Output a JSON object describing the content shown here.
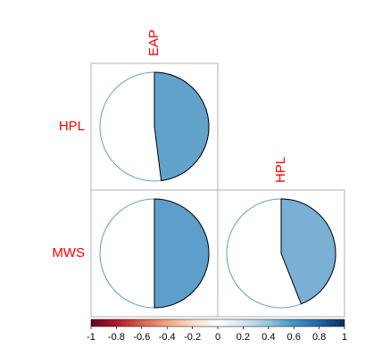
{
  "chart_data": {
    "type": "corrplot",
    "rows": [
      "HPL",
      "MWS"
    ],
    "columns": [
      "EAP",
      "HPL"
    ],
    "values": [
      [
        0.48,
        null
      ],
      [
        0.5,
        0.44
      ]
    ],
    "colors": [
      [
        "#62a3cb",
        null
      ],
      [
        "#5d9fca",
        "#7ab0d4"
      ]
    ],
    "colorbar": {
      "lim": [
        -1,
        1
      ],
      "ticks": [
        -1,
        -0.8,
        -0.6,
        -0.4,
        -0.2,
        0,
        0.2,
        0.4,
        0.6,
        0.8,
        1
      ],
      "colors": [
        "#67001f",
        "#b2182b",
        "#d6604d",
        "#f4a582",
        "#fddbc7",
        "#ffffff",
        "#d1e5f0",
        "#92c5de",
        "#4393c3",
        "#2166ac",
        "#053061"
      ]
    }
  }
}
